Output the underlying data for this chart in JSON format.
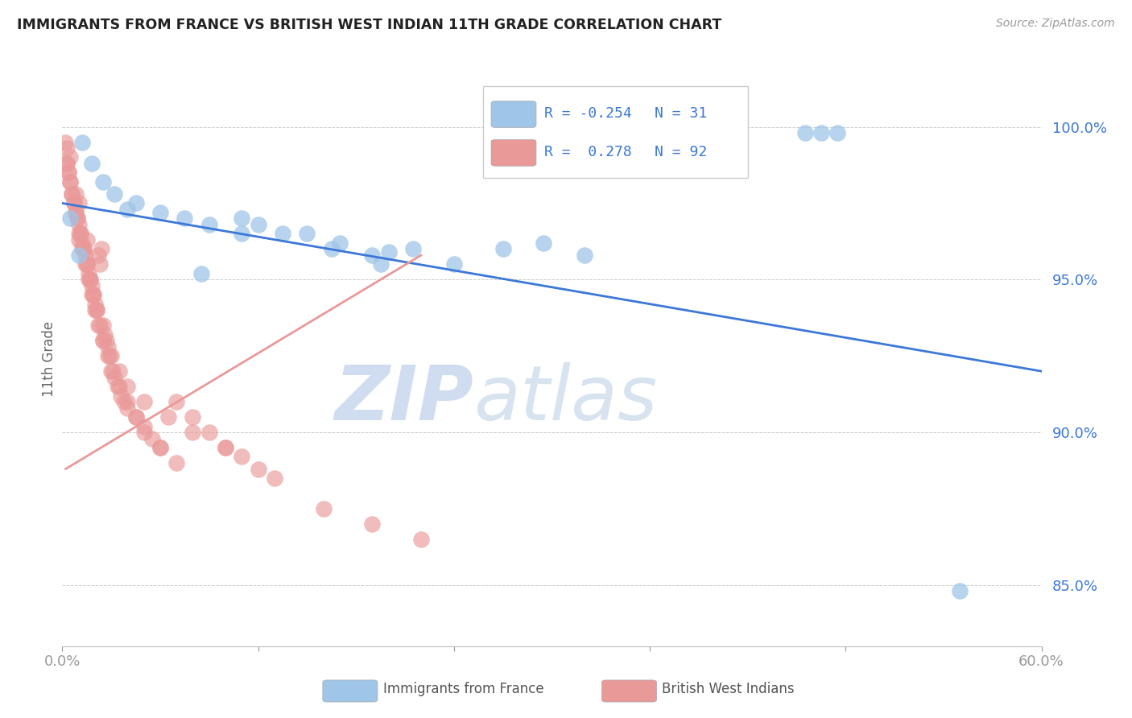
{
  "title": "IMMIGRANTS FROM FRANCE VS BRITISH WEST INDIAN 11TH GRADE CORRELATION CHART",
  "source": "Source: ZipAtlas.com",
  "ylabel": "11th Grade",
  "xlim": [
    0.0,
    60.0
  ],
  "ylim": [
    83.0,
    101.8
  ],
  "y_ticks": [
    85.0,
    90.0,
    95.0,
    100.0
  ],
  "r_blue": -0.254,
  "n_blue": 31,
  "r_pink": 0.278,
  "n_pink": 92,
  "legend_label_blue": "Immigrants from France",
  "legend_label_pink": "British West Indians",
  "watermark_zip": "ZIP",
  "watermark_atlas": "atlas",
  "blue_scatter_x": [
    1.2,
    1.8,
    2.5,
    3.2,
    4.5,
    6.0,
    7.5,
    9.0,
    11.0,
    13.5,
    15.0,
    17.0,
    19.0,
    21.5,
    24.0,
    27.0,
    29.5,
    32.0,
    45.5,
    46.5,
    47.5,
    0.5,
    1.0,
    4.0,
    8.5,
    12.0,
    16.5,
    20.0,
    11.0,
    19.5,
    55.0
  ],
  "blue_scatter_y": [
    99.5,
    98.8,
    98.2,
    97.8,
    97.5,
    97.2,
    97.0,
    96.8,
    97.0,
    96.5,
    96.5,
    96.2,
    95.8,
    96.0,
    95.5,
    96.0,
    96.2,
    95.8,
    99.8,
    99.8,
    99.8,
    97.0,
    95.8,
    97.3,
    95.2,
    96.8,
    96.0,
    95.9,
    96.5,
    95.5,
    84.8
  ],
  "pink_scatter_x": [
    0.2,
    0.3,
    0.3,
    0.4,
    0.5,
    0.5,
    0.6,
    0.7,
    0.8,
    0.8,
    0.9,
    1.0,
    1.0,
    1.0,
    1.1,
    1.2,
    1.3,
    1.4,
    1.5,
    1.5,
    1.6,
    1.7,
    1.8,
    1.9,
    2.0,
    2.1,
    2.2,
    2.3,
    2.4,
    2.5,
    2.6,
    2.7,
    2.8,
    2.9,
    3.0,
    3.2,
    3.4,
    3.6,
    3.8,
    4.0,
    4.5,
    5.0,
    5.5,
    6.0,
    7.0,
    8.0,
    9.0,
    10.0,
    11.0,
    12.0,
    0.3,
    0.5,
    0.7,
    0.9,
    1.1,
    1.3,
    1.5,
    1.7,
    1.9,
    2.1,
    2.3,
    2.5,
    2.8,
    3.1,
    3.5,
    4.0,
    4.5,
    5.0,
    6.0,
    7.0,
    0.4,
    0.6,
    0.8,
    1.0,
    1.2,
    1.4,
    1.6,
    1.8,
    2.0,
    2.2,
    2.5,
    3.0,
    3.5,
    4.0,
    5.0,
    6.5,
    8.0,
    10.0,
    13.0,
    16.0,
    19.0,
    22.0
  ],
  "pink_scatter_y": [
    99.5,
    99.3,
    98.8,
    98.5,
    99.0,
    98.2,
    97.8,
    97.5,
    97.2,
    97.8,
    97.0,
    96.8,
    97.5,
    96.3,
    96.5,
    96.2,
    96.0,
    95.8,
    95.5,
    96.3,
    95.2,
    95.0,
    94.8,
    94.5,
    94.2,
    94.0,
    95.8,
    95.5,
    96.0,
    93.5,
    93.2,
    93.0,
    92.8,
    92.5,
    92.0,
    91.8,
    91.5,
    91.2,
    91.0,
    90.8,
    90.5,
    90.2,
    89.8,
    89.5,
    91.0,
    90.5,
    90.0,
    89.5,
    89.2,
    88.8,
    98.8,
    98.2,
    97.5,
    97.0,
    96.5,
    96.0,
    95.5,
    95.0,
    94.5,
    94.0,
    93.5,
    93.0,
    92.5,
    92.0,
    91.5,
    91.0,
    90.5,
    90.0,
    89.5,
    89.0,
    98.5,
    97.8,
    97.2,
    96.5,
    96.0,
    95.5,
    95.0,
    94.5,
    94.0,
    93.5,
    93.0,
    92.5,
    92.0,
    91.5,
    91.0,
    90.5,
    90.0,
    89.5,
    88.5,
    87.5,
    87.0,
    86.5
  ],
  "blue_line_x": [
    0.0,
    60.0
  ],
  "blue_line_y": [
    97.5,
    92.0
  ],
  "pink_line_x": [
    0.2,
    22.0
  ],
  "pink_line_y": [
    88.8,
    95.8
  ],
  "blue_color": "#9fc5e8",
  "pink_color": "#ea9999",
  "blue_line_color": "#3c78d8",
  "pink_line_color": "#cc4444",
  "axis_color": "#3c78d8",
  "background_color": "#ffffff",
  "grid_color": "#cccccc"
}
